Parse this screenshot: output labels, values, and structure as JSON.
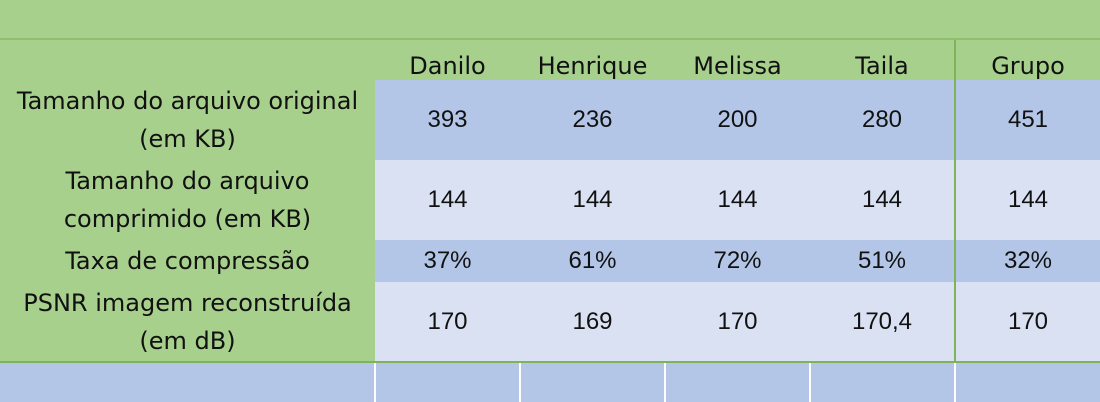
{
  "table": {
    "headers": [
      "Danilo",
      "Henrique",
      "Melissa",
      "Taila",
      "Grupo"
    ],
    "rows": [
      {
        "label": "Tamanho do arquivo original\n(em KB)",
        "values": [
          "393",
          "236",
          "200",
          "280",
          "451"
        ]
      },
      {
        "label": "Tamanho do arquivo\ncomprimido  (em KB)",
        "values": [
          "144",
          "144",
          "144",
          "144",
          "144"
        ]
      },
      {
        "label": "Taxa de compressão",
        "values": [
          "37%",
          "61%",
          "72%",
          "51%",
          "32%"
        ]
      },
      {
        "label": "PSNR imagem reconstruída\n(em dB)",
        "values": [
          "170",
          "169",
          "170",
          "170,4",
          "170"
        ]
      }
    ]
  },
  "colors": {
    "label_green": "#a8d08d",
    "value_blue_dark": "#b4c6e7",
    "value_blue_light": "#d9e1f2",
    "separator_green": "#7fb35a"
  }
}
